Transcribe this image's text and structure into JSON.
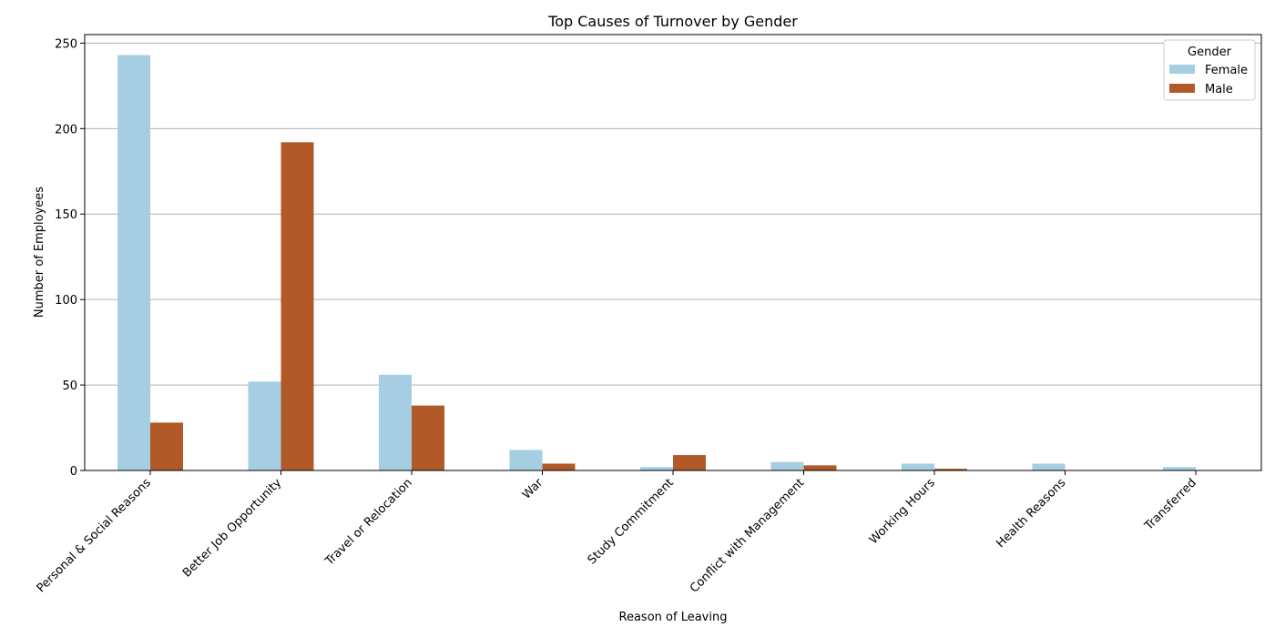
{
  "chart_data": {
    "type": "bar",
    "title": "Top Causes of Turnover by Gender",
    "xlabel": "Reason of Leaving",
    "ylabel": "Number of Employees",
    "categories": [
      "Personal & Social Reasons",
      "Better Job Opportunity",
      "Travel or Relocation",
      "War",
      "Study Commitment",
      "Conflict with Management",
      "Working Hours",
      "Health Reasons",
      "Transferred"
    ],
    "series": [
      {
        "name": "Female",
        "color": "#a6cee3",
        "values": [
          243,
          52,
          56,
          12,
          2,
          5,
          4,
          4,
          2
        ]
      },
      {
        "name": "Male",
        "color": "#b15928",
        "values": [
          28,
          192,
          38,
          4,
          9,
          3,
          1,
          0,
          0
        ]
      }
    ],
    "ylim": [
      0,
      255
    ],
    "yticks": [
      0,
      50,
      100,
      150,
      200,
      250
    ],
    "grid": "y",
    "legend": {
      "title": "Gender",
      "position": "top-right"
    }
  }
}
